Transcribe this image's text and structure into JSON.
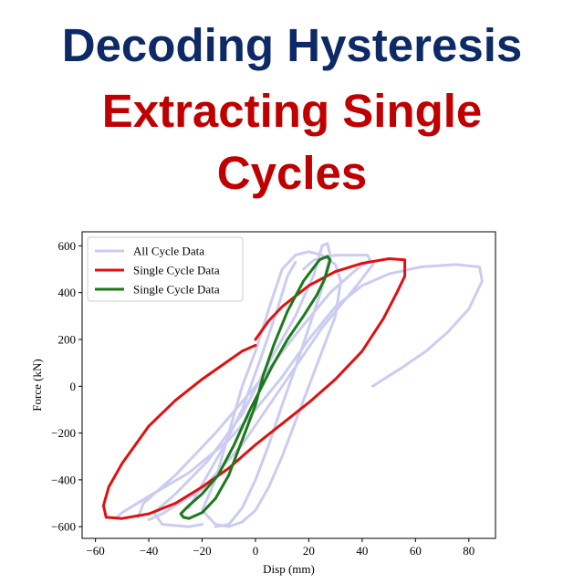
{
  "title": {
    "line1": "Decoding Hysteresis",
    "line2": "Extracting Single",
    "line3": "Cycles",
    "line1_color": "#0d2a66",
    "line2_color": "#c00000"
  },
  "chart_data": {
    "type": "line",
    "xlabel": "Disp (mm)",
    "ylabel": "Force (kN)",
    "xlim": [
      -65,
      90
    ],
    "ylim": [
      -650,
      660
    ],
    "xticks": [
      -60,
      -40,
      -20,
      0,
      20,
      40,
      60,
      80
    ],
    "yticks": [
      -600,
      -400,
      -200,
      0,
      200,
      400,
      600
    ],
    "grid": false,
    "legend_position": "top-left",
    "series": [
      {
        "name": "All Cycle Data",
        "color": "#ccccf2",
        "width": 3,
        "segments": [
          [
            [
              -20,
              -530
            ],
            [
              -15,
              -400
            ],
            [
              -10,
              -200
            ],
            [
              -5,
              0
            ],
            [
              0,
              150
            ],
            [
              5,
              330
            ],
            [
              10,
              500
            ],
            [
              15,
              560
            ],
            [
              20,
              575
            ],
            [
              25,
              560
            ],
            [
              30,
              520
            ],
            [
              32,
              450
            ],
            [
              30,
              300
            ],
            [
              25,
              150
            ],
            [
              20,
              0
            ],
            [
              15,
              -150
            ],
            [
              10,
              -300
            ],
            [
              5,
              -430
            ],
            [
              0,
              -530
            ],
            [
              -5,
              -580
            ],
            [
              -10,
              -600
            ],
            [
              -15,
              -590
            ],
            [
              -20,
              -530
            ]
          ],
          [
            [
              -25,
              -520
            ],
            [
              -20,
              -420
            ],
            [
              -12,
              -260
            ],
            [
              -5,
              -100
            ],
            [
              2,
              120
            ],
            [
              8,
              320
            ],
            [
              12,
              470
            ],
            [
              15,
              530
            ]
          ],
          [
            [
              -20,
              -590
            ],
            [
              -25,
              -600
            ],
            [
              -35,
              -590
            ],
            [
              -38,
              -540
            ],
            [
              -30,
              -460
            ],
            [
              -18,
              -320
            ],
            [
              -5,
              -120
            ],
            [
              5,
              100
            ],
            [
              15,
              300
            ],
            [
              22,
              480
            ],
            [
              25,
              600
            ],
            [
              27,
              610
            ],
            [
              28,
              560
            ],
            [
              25,
              420
            ],
            [
              20,
              250
            ],
            [
              15,
              80
            ],
            [
              10,
              -80
            ],
            [
              5,
              -250
            ],
            [
              0,
              -400
            ],
            [
              -5,
              -520
            ],
            [
              -10,
              -590
            ],
            [
              -15,
              -600
            ]
          ],
          [
            [
              -52,
              -560
            ],
            [
              -50,
              -540
            ],
            [
              -40,
              -470
            ],
            [
              -25,
              -370
            ],
            [
              -10,
              -230
            ],
            [
              0,
              -100
            ],
            [
              10,
              40
            ],
            [
              20,
              200
            ],
            [
              30,
              340
            ],
            [
              40,
              430
            ],
            [
              50,
              480
            ],
            [
              62,
              510
            ],
            [
              75,
              520
            ],
            [
              84,
              510
            ],
            [
              85,
              450
            ],
            [
              80,
              330
            ],
            [
              72,
              230
            ],
            [
              64,
              150
            ],
            [
              55,
              80
            ],
            [
              48,
              30
            ],
            [
              44,
              0
            ]
          ],
          [
            [
              -44,
              -560
            ],
            [
              -42,
              -500
            ],
            [
              -30,
              -380
            ],
            [
              -15,
              -200
            ],
            [
              0,
              0
            ],
            [
              15,
              220
            ],
            [
              28,
              400
            ],
            [
              38,
              500
            ],
            [
              43,
              540
            ],
            [
              42,
              560
            ],
            [
              30,
              560
            ],
            [
              22,
              540
            ],
            [
              18,
              500
            ]
          ],
          [
            [
              -40,
              -570
            ],
            [
              -35,
              -545
            ],
            [
              -20,
              -440
            ],
            [
              -5,
              -250
            ],
            [
              10,
              0
            ],
            [
              25,
              250
            ],
            [
              38,
              430
            ],
            [
              44,
              520
            ]
          ]
        ]
      },
      {
        "name": "Single Cycle Data",
        "color": "#e01010",
        "width": 3,
        "segments": [
          [
            [
              0,
              175
            ],
            [
              -5,
              150
            ],
            [
              -10,
              110
            ],
            [
              -20,
              30
            ],
            [
              -30,
              -60
            ],
            [
              -40,
              -170
            ],
            [
              -50,
              -330
            ],
            [
              -55,
              -430
            ],
            [
              -57,
              -510
            ],
            [
              -56,
              -560
            ],
            [
              -50,
              -565
            ],
            [
              -40,
              -545
            ],
            [
              -30,
              -500
            ],
            [
              -20,
              -430
            ],
            [
              -10,
              -350
            ],
            [
              0,
              -250
            ],
            [
              10,
              -160
            ],
            [
              20,
              -70
            ],
            [
              30,
              30
            ],
            [
              40,
              150
            ],
            [
              48,
              290
            ],
            [
              53,
              400
            ],
            [
              56,
              470
            ],
            [
              56,
              540
            ],
            [
              50,
              545
            ],
            [
              40,
              525
            ],
            [
              30,
              490
            ],
            [
              20,
              430
            ],
            [
              10,
              340
            ],
            [
              5,
              280
            ],
            [
              0,
              200
            ]
          ]
        ]
      },
      {
        "name": "Single Cycle Data",
        "color": "#1a7a1a",
        "width": 3,
        "segments": [
          [
            [
              -27,
              -560
            ],
            [
              -25,
              -565
            ],
            [
              -20,
              -540
            ],
            [
              -15,
              -480
            ],
            [
              -10,
              -380
            ],
            [
              -5,
              -230
            ],
            [
              0,
              -80
            ],
            [
              3,
              50
            ],
            [
              7,
              180
            ],
            [
              12,
              320
            ],
            [
              18,
              450
            ],
            [
              24,
              540
            ],
            [
              27,
              555
            ],
            [
              28,
              540
            ],
            [
              26,
              460
            ],
            [
              23,
              390
            ],
            [
              18,
              300
            ],
            [
              12,
              200
            ],
            [
              6,
              80
            ],
            [
              2,
              -10
            ],
            [
              -2,
              -100
            ],
            [
              -8,
              -250
            ],
            [
              -14,
              -380
            ],
            [
              -20,
              -460
            ],
            [
              -25,
              -510
            ],
            [
              -28,
              -545
            ],
            [
              -27,
              -560
            ]
          ]
        ]
      }
    ]
  }
}
